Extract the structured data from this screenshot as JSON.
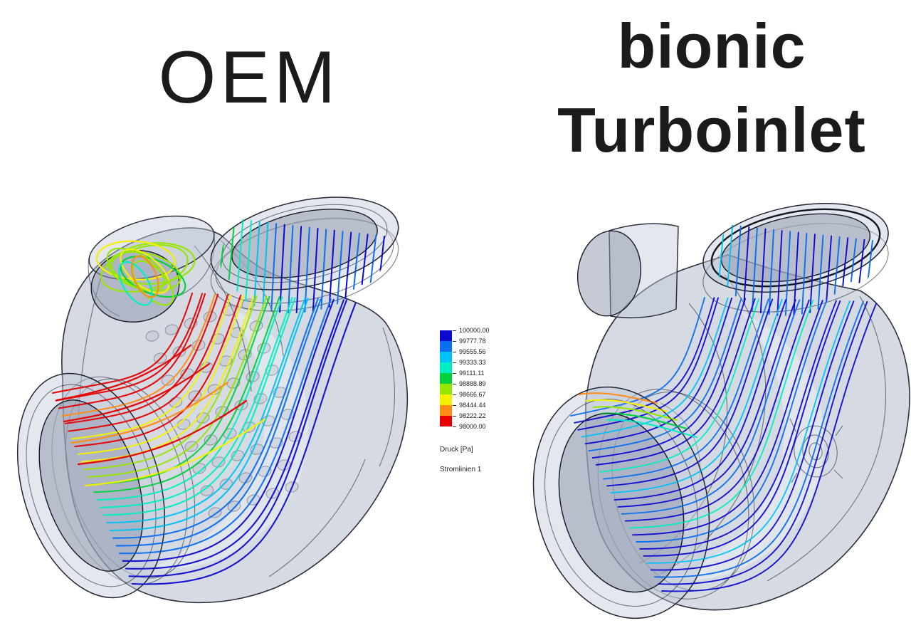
{
  "page": {
    "background": "#ffffff"
  },
  "titles": {
    "left": "OEM",
    "right_line1": "bionic",
    "right_line2": "Turboinlet",
    "color": "#1b1b1b"
  },
  "legend": {
    "tick_values": [
      "100000.00",
      "99777.78",
      "99555.56",
      "99333.33",
      "99111.11",
      "98888.89",
      "98666.67",
      "98444.44",
      "98222.22",
      "98000.00"
    ],
    "band_colors": [
      "#0a0ad2",
      "#0a6ef0",
      "#00c3f5",
      "#00eec3",
      "#00d23c",
      "#96e600",
      "#f5f000",
      "#ff8c14",
      "#e60000"
    ],
    "quantity_label": "Druck [Pa]",
    "series_label": "Stromlinien 1",
    "text_color": "#222222"
  },
  "model_colors": {
    "edge": "#2b303c",
    "wire": "rgba(24,27,38,0.55)",
    "glass": "rgba(174,181,199,0.5)",
    "glass_light": "rgba(196,202,216,0.45)",
    "glass_dark": "rgba(142,150,172,0.5)",
    "highlight": "rgba(236,239,246,0.5)"
  }
}
